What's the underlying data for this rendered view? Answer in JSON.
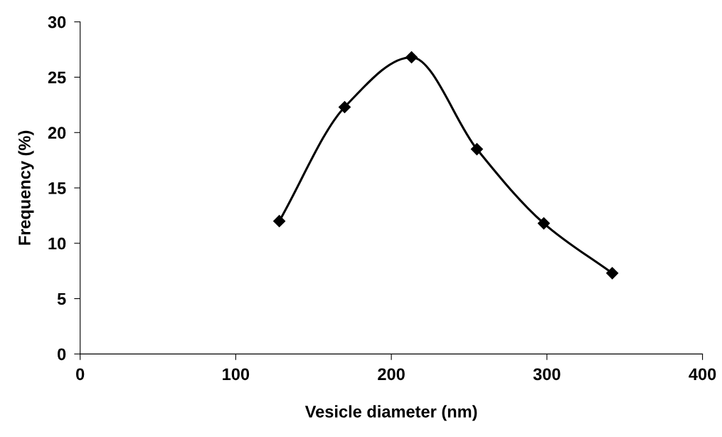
{
  "chart_data": {
    "type": "line",
    "xlabel": "Vesicle diameter (nm)",
    "ylabel": "Frequency (%)",
    "x": [
      128,
      170,
      213,
      255,
      298,
      342
    ],
    "series": [
      {
        "color": "#000000",
        "values": [
          12.0,
          22.3,
          26.8,
          18.5,
          11.8,
          7.3
        ]
      }
    ],
    "xlim": [
      0,
      400
    ],
    "xticks": [
      0,
      100,
      200,
      300,
      400
    ],
    "ylim": [
      0,
      30
    ],
    "yticks": [
      0,
      5,
      10,
      15,
      20,
      25,
      30
    ],
    "marker": "diamond",
    "line_style": "solid",
    "grid": false,
    "legend": false
  }
}
